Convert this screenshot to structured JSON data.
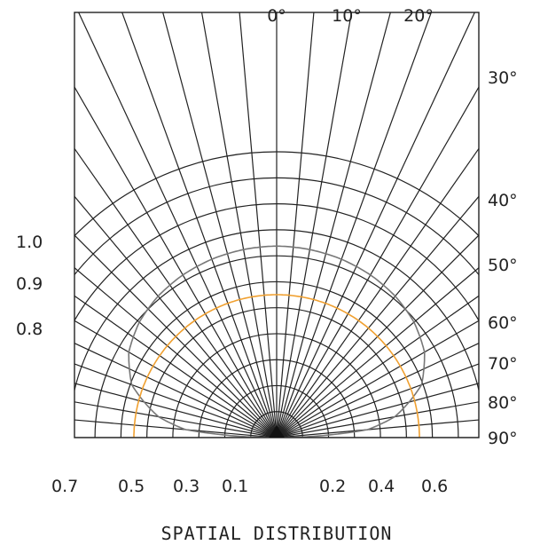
{
  "chart_data": {
    "type": "polar-distribution",
    "title": "SPATIAL DISTRIBUTION",
    "grid": true,
    "angle_labels": [
      "0°",
      "10°",
      "20°",
      "30°",
      "40°",
      "50°",
      "60°",
      "70°",
      "80°",
      "90°"
    ],
    "angle_step_deg": 5,
    "radius_rings": 11,
    "left_axis_labels": [
      "1.0",
      "0.9",
      "0.8"
    ],
    "bottom_axis_labels": {
      "left": [
        "0.7",
        "0.5",
        "0.3",
        "0.1"
      ],
      "right": [
        "0.2",
        "0.4",
        "0.6"
      ]
    },
    "series": [
      {
        "color": "#777777",
        "points": [
          [
            0,
            0.67
          ],
          [
            10,
            0.668
          ],
          [
            20,
            0.664
          ],
          [
            30,
            0.657
          ],
          [
            40,
            0.646
          ],
          [
            50,
            0.628
          ],
          [
            60,
            0.598
          ],
          [
            70,
            0.54
          ],
          [
            80,
            0.42
          ],
          [
            85,
            0.32
          ],
          [
            90,
            0.0
          ]
        ]
      },
      {
        "color": "#f0a030",
        "points": [
          [
            0,
            0.5
          ],
          [
            15,
            0.5
          ],
          [
            30,
            0.5
          ],
          [
            45,
            0.5
          ],
          [
            60,
            0.5
          ],
          [
            75,
            0.5
          ],
          [
            90,
            0.5
          ]
        ]
      }
    ],
    "rmax": 1.0
  }
}
